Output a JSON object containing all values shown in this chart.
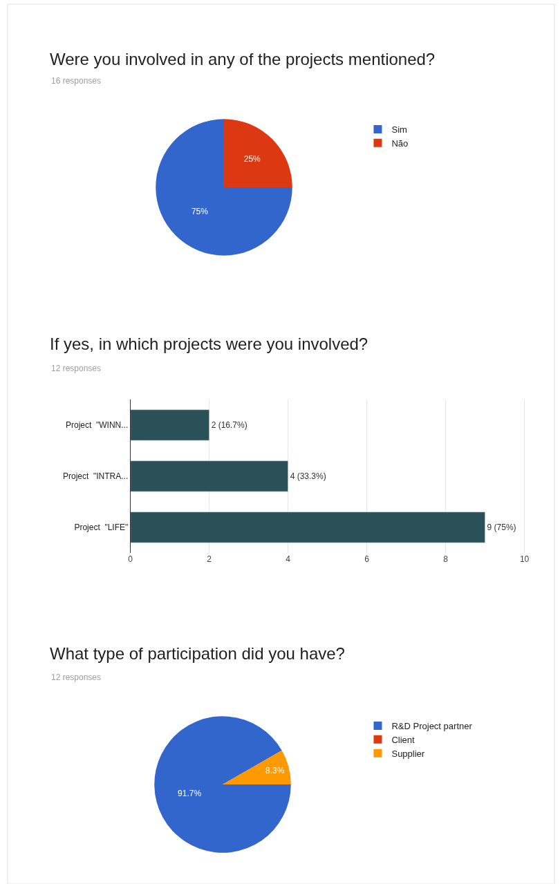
{
  "chart_data": [
    {
      "type": "pie",
      "title": "Were you involved in any of the projects mentioned?",
      "subtitle": "16 responses",
      "categories": [
        "Sim",
        "Não"
      ],
      "values": [
        75,
        25
      ],
      "colors": [
        "#3366cc",
        "#dc3912"
      ],
      "value_labels": [
        "75%",
        "25%"
      ],
      "legend": "right"
    },
    {
      "type": "bar",
      "orientation": "horizontal",
      "title": "If yes, in which projects were you involved?",
      "subtitle": "12 responses",
      "categories": [
        "Project  \"WINN...",
        "Project  \"INTRA...",
        "Project  \"LIFE\""
      ],
      "values": [
        2,
        4,
        9
      ],
      "color": "#2a5158",
      "value_labels": [
        "2 (16.7%)",
        "4 (33.3%)",
        "9 (75%)"
      ],
      "xlim": [
        0,
        10
      ],
      "xticks": [
        0,
        2,
        4,
        6,
        8,
        10
      ],
      "grid": "x"
    },
    {
      "type": "pie",
      "title": "What type of participation did you have?",
      "subtitle": "12 responses",
      "categories": [
        "R&D Project partner",
        "Client",
        "Supplier"
      ],
      "values": [
        91.7,
        0,
        8.3
      ],
      "colors": [
        "#3366cc",
        "#dc3912",
        "#ff9900"
      ],
      "value_labels": [
        "91.7%",
        null,
        "8.3%"
      ],
      "legend": "right"
    }
  ]
}
